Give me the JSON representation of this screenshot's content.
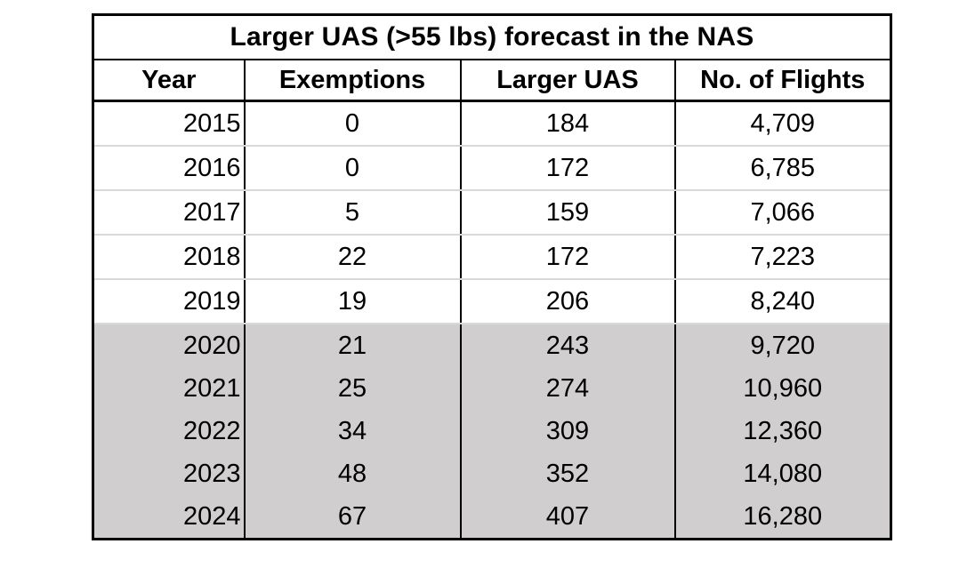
{
  "table": {
    "title": "Larger UAS (>55 lbs) forecast in the NAS",
    "columns": [
      "Year",
      "Exemptions",
      "Larger UAS",
      "No. of Flights"
    ],
    "rows": [
      {
        "year": "2015",
        "exemptions": "0",
        "larger_uas": "184",
        "flights": "4,709"
      },
      {
        "year": "2016",
        "exemptions": "0",
        "larger_uas": "172",
        "flights": "6,785"
      },
      {
        "year": "2017",
        "exemptions": "5",
        "larger_uas": "159",
        "flights": "7,066"
      },
      {
        "year": "2018",
        "exemptions": "22",
        "larger_uas": "172",
        "flights": "7,223"
      },
      {
        "year": "2019",
        "exemptions": "19",
        "larger_uas": "206",
        "flights": "8,240"
      },
      {
        "year": "2020",
        "exemptions": "21",
        "larger_uas": "243",
        "flights": "9,720"
      },
      {
        "year": "2021",
        "exemptions": "25",
        "larger_uas": "274",
        "flights": "10,960"
      },
      {
        "year": "2022",
        "exemptions": "34",
        "larger_uas": "309",
        "flights": "12,360"
      },
      {
        "year": "2023",
        "exemptions": "48",
        "larger_uas": "352",
        "flights": "14,080"
      },
      {
        "year": "2024",
        "exemptions": "67",
        "larger_uas": "407",
        "flights": "16,280"
      }
    ]
  },
  "colors": {
    "forecast_row_bg": "#d0cece",
    "row_divider": "#d9d9d9",
    "border": "#000000"
  },
  "chart_data": {
    "type": "table",
    "title": "Larger UAS (>55 lbs) forecast in the NAS",
    "categories": [
      "2015",
      "2016",
      "2017",
      "2018",
      "2019",
      "2020",
      "2021",
      "2022",
      "2023",
      "2024"
    ],
    "series": [
      {
        "name": "Exemptions",
        "values": [
          0,
          0,
          5,
          22,
          19,
          21,
          25,
          34,
          48,
          67
        ]
      },
      {
        "name": "Larger UAS",
        "values": [
          184,
          172,
          159,
          172,
          206,
          243,
          274,
          309,
          352,
          407
        ]
      },
      {
        "name": "No. of Flights",
        "values": [
          4709,
          6785,
          7066,
          7223,
          8240,
          9720,
          10960,
          12360,
          14080,
          16280
        ]
      }
    ],
    "notes": "Rows 2020-2024 are forecast values, shaded gray"
  }
}
